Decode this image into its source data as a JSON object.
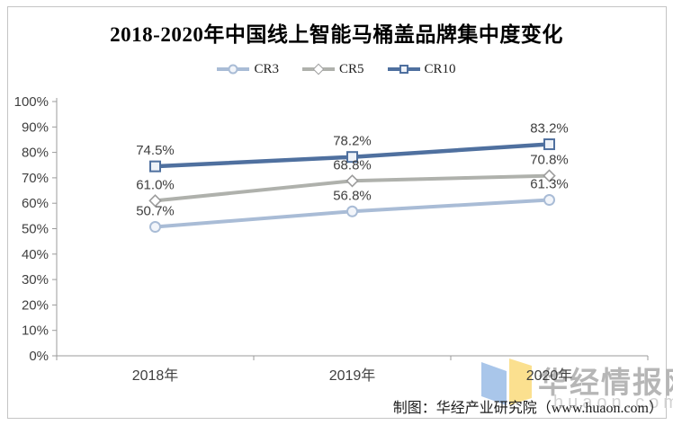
{
  "header": {
    "title": "2018-2020年中国线上智能马桶盖品牌集中度变化"
  },
  "chart_data": {
    "type": "line",
    "title": "2018-2020年中国线上智能马桶盖品牌集中度变化",
    "categories": [
      "2018年",
      "2019年",
      "2020年"
    ],
    "series": [
      {
        "name": "CR3",
        "values": [
          50.7,
          56.8,
          61.3
        ],
        "color": "#a9bcd6",
        "marker": "circle",
        "marker_stroke": "#a9bcd6",
        "marker_fill": "#f2f5fa"
      },
      {
        "name": "CR5",
        "values": [
          61.0,
          68.8,
          70.8
        ],
        "color": "#afb1ac",
        "marker": "diamond",
        "marker_stroke": "#9c9c9c",
        "marker_fill": "#ffffff"
      },
      {
        "name": "CR10",
        "values": [
          74.5,
          78.2,
          83.2
        ],
        "color": "#4f709f",
        "marker": "square",
        "marker_stroke": "#4f709f",
        "marker_fill": "#eef2f8"
      }
    ],
    "xlabel": "",
    "ylabel": "",
    "ylim": [
      0,
      100
    ],
    "ytick_step": 10,
    "ytick_suffix": "%",
    "data_label_decimals": 1,
    "grid": false,
    "legend_position": "top"
  },
  "footer": {
    "credit": "制图：华经产业研究院（www.huaon.com）"
  },
  "watermark": {
    "brand": "华经情报网",
    "url": "huaon.com",
    "logo_blue": "#a9c6ea",
    "logo_yellow": "#fbe08f"
  },
  "colors": {
    "axis": "#9b9b9b",
    "frame": "#c4c4c4",
    "tick_text": "#3f3f3f",
    "title_text": "#000000"
  }
}
